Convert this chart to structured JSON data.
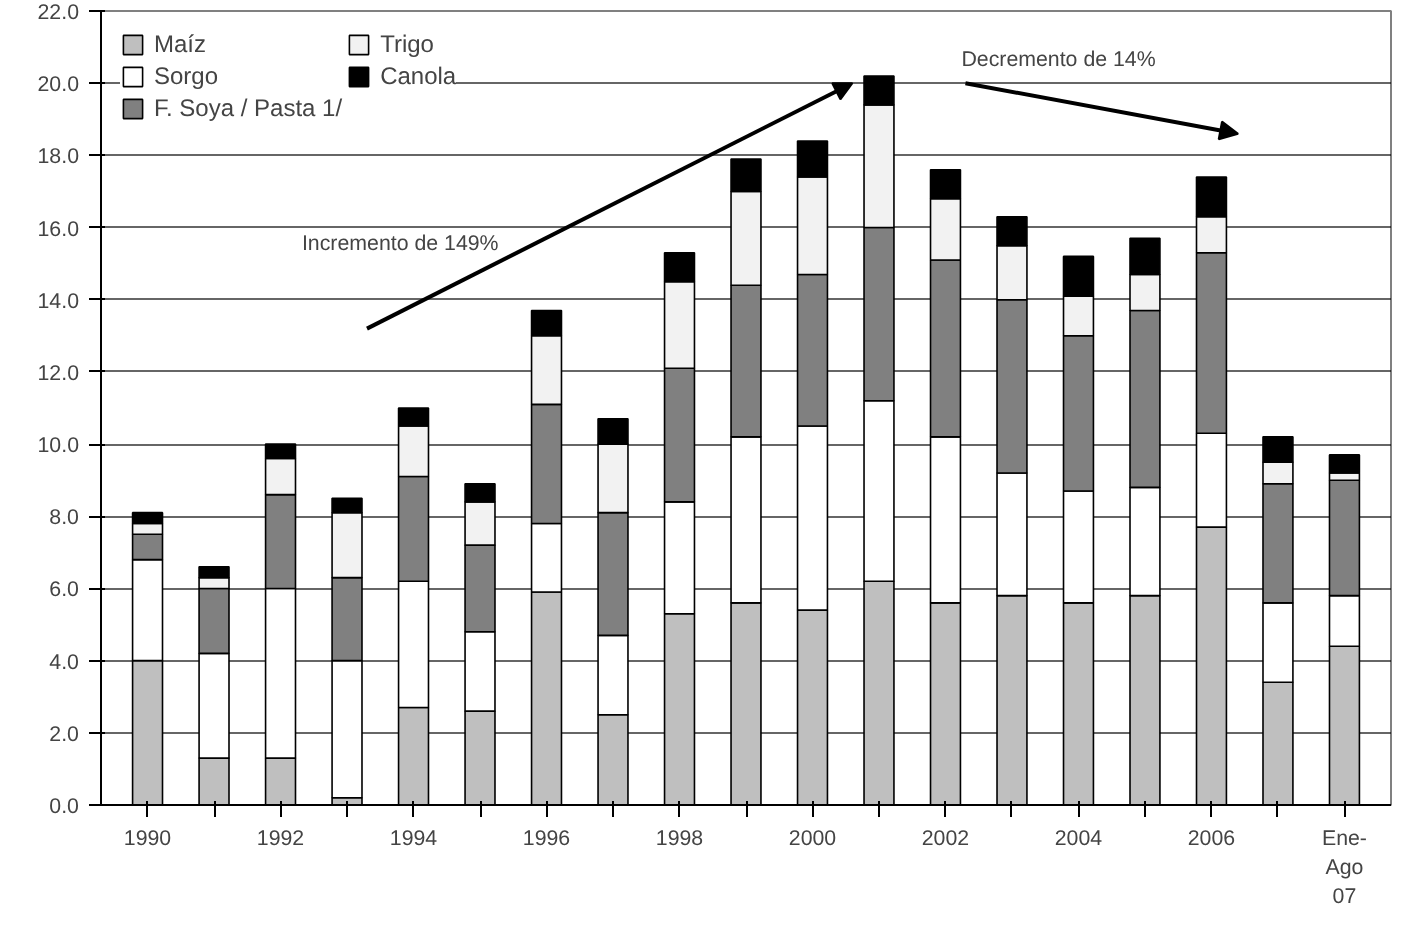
{
  "chart_data": {
    "type": "bar",
    "stacked": true,
    "categories": [
      "1990",
      null,
      "1992",
      null,
      "1994",
      null,
      "1996",
      null,
      "1998",
      null,
      "2000",
      null,
      "2002",
      null,
      "2004",
      null,
      "2006",
      null,
      "Ene-\nAgo\n07"
    ],
    "series": [
      {
        "name": "Maíz",
        "color": "#bfbfbf",
        "values": [
          4.0,
          1.3,
          1.3,
          0.2,
          2.7,
          2.6,
          5.9,
          2.5,
          5.3,
          5.6,
          5.4,
          6.2,
          5.6,
          5.8,
          5.6,
          5.8,
          7.7,
          3.4,
          4.4
        ]
      },
      {
        "name": "Sorgo",
        "color": "#ffffff",
        "values": [
          2.8,
          2.9,
          4.7,
          3.8,
          3.5,
          2.2,
          1.9,
          2.2,
          3.1,
          4.6,
          5.1,
          5.0,
          4.6,
          3.4,
          3.1,
          3.0,
          2.6,
          2.2,
          1.4
        ]
      },
      {
        "name": "F. Soya / Pasta 1/",
        "color": "#808080",
        "values": [
          0.7,
          1.8,
          2.6,
          2.3,
          2.9,
          2.4,
          3.3,
          3.4,
          3.7,
          4.2,
          4.2,
          4.8,
          4.9,
          4.8,
          4.3,
          4.9,
          5.0,
          3.3,
          3.2
        ]
      },
      {
        "name": "Trigo",
        "color": "#f2f2f2",
        "values": [
          0.3,
          0.3,
          1.0,
          1.8,
          1.4,
          1.2,
          1.9,
          1.9,
          2.4,
          2.6,
          2.7,
          3.4,
          1.7,
          1.5,
          1.1,
          1.0,
          1.0,
          0.6,
          0.2
        ]
      },
      {
        "name": "Canola",
        "color": "#000000",
        "values": [
          0.3,
          0.3,
          0.4,
          0.4,
          0.5,
          0.5,
          0.7,
          0.7,
          0.8,
          0.9,
          1.0,
          0.8,
          0.8,
          0.8,
          1.1,
          1.0,
          1.1,
          0.7,
          0.5
        ]
      }
    ],
    "ylim": [
      0,
      22
    ],
    "yticks": [
      {
        "value": 0,
        "label": "0.0"
      },
      {
        "value": 2,
        "label": "2.0"
      },
      {
        "value": 4,
        "label": "4.0"
      },
      {
        "value": 6,
        "label": "6.0"
      },
      {
        "value": 8,
        "label": "8.0"
      },
      {
        "value": 10,
        "label": "10.0"
      },
      {
        "value": 12,
        "label": "12.0"
      },
      {
        "value": 14,
        "label": "14.0"
      },
      {
        "value": 16,
        "label": "16.0"
      },
      {
        "value": 18,
        "label": "18.0"
      },
      {
        "value": 20,
        "label": "20.0"
      },
      {
        "value": 22,
        "label": "22.0"
      }
    ],
    "grid": "y",
    "legend": "top left",
    "annotations": [
      "Incremento de 149%",
      "Decremento de 14%"
    ]
  }
}
